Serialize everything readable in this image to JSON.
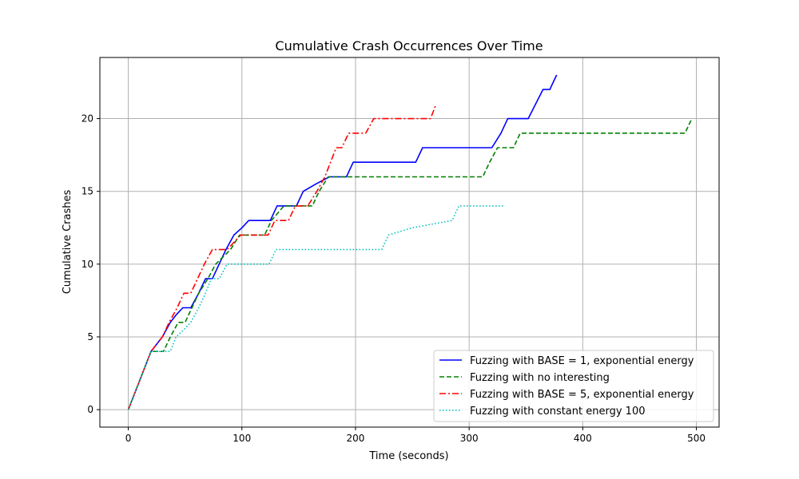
{
  "chart_data": {
    "type": "line",
    "title": "Cumulative Crash Occurrences Over Time",
    "xlabel": "Time (seconds)",
    "ylabel": "Cumulative Crashes",
    "xlim": [
      -25,
      520
    ],
    "ylim": [
      -1.2,
      24.2
    ],
    "xticks": [
      0,
      100,
      200,
      300,
      400,
      500
    ],
    "yticks": [
      0,
      5,
      10,
      15,
      20
    ],
    "grid": true,
    "legend_position": "lower-right",
    "series": [
      {
        "name": "Fuzzing with BASE = 1, exponential energy",
        "color": "#0000ff",
        "dash": "solid",
        "points": [
          [
            0,
            0
          ],
          [
            10,
            2
          ],
          [
            20,
            4
          ],
          [
            30,
            5
          ],
          [
            37,
            6
          ],
          [
            42,
            6.5
          ],
          [
            48,
            7
          ],
          [
            55,
            7
          ],
          [
            62,
            8
          ],
          [
            68,
            9
          ],
          [
            74,
            9
          ],
          [
            80,
            10
          ],
          [
            86,
            11
          ],
          [
            93,
            12
          ],
          [
            100,
            12.5
          ],
          [
            106,
            13
          ],
          [
            125,
            13
          ],
          [
            131,
            14
          ],
          [
            148,
            14
          ],
          [
            154,
            15
          ],
          [
            165,
            15.5
          ],
          [
            177,
            16
          ],
          [
            192,
            16
          ],
          [
            198,
            17
          ],
          [
            253,
            17
          ],
          [
            259,
            18
          ],
          [
            320,
            18
          ],
          [
            328,
            19
          ],
          [
            334,
            20
          ],
          [
            352,
            20
          ],
          [
            365,
            22
          ],
          [
            371,
            22
          ],
          [
            377,
            23
          ]
        ]
      },
      {
        "name": "Fuzzing with no interesting",
        "color": "#008000",
        "dash": "dashed",
        "points": [
          [
            0,
            0
          ],
          [
            10,
            2
          ],
          [
            20,
            4
          ],
          [
            31,
            4
          ],
          [
            37,
            5
          ],
          [
            44,
            6
          ],
          [
            50,
            6
          ],
          [
            56,
            7
          ],
          [
            62,
            8
          ],
          [
            70,
            9
          ],
          [
            77,
            10
          ],
          [
            90,
            11
          ],
          [
            98,
            12
          ],
          [
            120,
            12
          ],
          [
            126,
            13
          ],
          [
            137,
            14
          ],
          [
            162,
            14
          ],
          [
            168,
            15
          ],
          [
            176,
            16
          ],
          [
            312,
            16
          ],
          [
            318,
            17
          ],
          [
            325,
            18
          ],
          [
            339,
            18
          ],
          [
            345,
            19
          ],
          [
            490,
            19
          ],
          [
            496,
            20
          ]
        ]
      },
      {
        "name": "Fuzzing with BASE = 5, exponential energy",
        "color": "#ff0000",
        "dash": "dashdot",
        "points": [
          [
            0,
            0
          ],
          [
            10,
            2
          ],
          [
            20,
            4
          ],
          [
            30,
            5
          ],
          [
            36,
            6
          ],
          [
            43,
            7
          ],
          [
            49,
            8
          ],
          [
            55,
            8
          ],
          [
            61,
            9
          ],
          [
            67,
            10
          ],
          [
            74,
            11
          ],
          [
            87,
            11
          ],
          [
            93,
            11.5
          ],
          [
            99,
            12
          ],
          [
            123,
            12
          ],
          [
            129,
            13
          ],
          [
            141,
            13
          ],
          [
            147,
            14
          ],
          [
            158,
            14
          ],
          [
            166,
            15
          ],
          [
            173,
            16
          ],
          [
            178,
            17
          ],
          [
            183,
            18
          ],
          [
            188,
            18
          ],
          [
            194,
            19
          ],
          [
            209,
            19
          ],
          [
            216,
            20
          ],
          [
            266,
            20
          ],
          [
            271,
            21
          ]
        ]
      },
      {
        "name": "Fuzzing with constant energy 100",
        "color": "#00bfbf",
        "dash": "dotted",
        "points": [
          [
            0,
            0
          ],
          [
            10,
            2
          ],
          [
            20,
            4
          ],
          [
            30,
            4
          ],
          [
            37,
            4
          ],
          [
            42,
            5
          ],
          [
            49,
            5.5
          ],
          [
            55,
            6
          ],
          [
            62,
            7
          ],
          [
            68,
            8
          ],
          [
            73,
            9
          ],
          [
            80,
            9
          ],
          [
            87,
            10
          ],
          [
            124,
            10
          ],
          [
            130,
            11
          ],
          [
            223,
            11
          ],
          [
            229,
            12
          ],
          [
            250,
            12.5
          ],
          [
            285,
            13
          ],
          [
            291,
            14
          ],
          [
            330,
            14
          ]
        ]
      }
    ]
  }
}
